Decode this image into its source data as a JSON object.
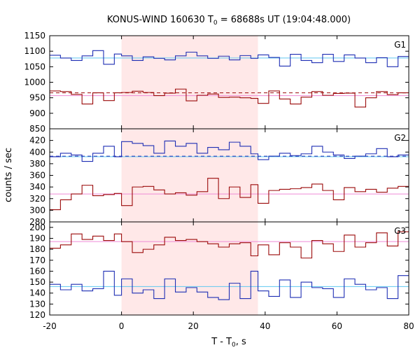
{
  "chart_data": {
    "type": "line",
    "title": "KONUS-WIND 160630 T",
    "title_sub": "0",
    "title_rest": " = 68688s UT (19:04:48.000)",
    "xlabel": "T - T",
    "xlabel_sub": "0",
    "xlabel_rest": ", s",
    "ylabel": "counts / sec",
    "x_range": [
      -20,
      80
    ],
    "x_ticks": [
      -20,
      0,
      20,
      40,
      60,
      80
    ],
    "highlight_interval": [
      0,
      38
    ],
    "highlight_color": "#ffe8e8",
    "colors": {
      "blue": "#1f2fb4",
      "red": "#9b0a0a",
      "cyan": "#5fc8f0",
      "pink": "#ef8ad6"
    },
    "bin_edges": [
      -20,
      -17,
      -14,
      -11,
      -8,
      -5,
      -2,
      0,
      3,
      6,
      9,
      12,
      15,
      18,
      21,
      24,
      27,
      30,
      33,
      36,
      38,
      41,
      44,
      47,
      50,
      53,
      56,
      59,
      62,
      65,
      68,
      71,
      74,
      77,
      80
    ],
    "panels": [
      {
        "label": "G1",
        "y_range": [
          850,
          1150
        ],
        "y_ticks": [
          850,
          900,
          950,
          1000,
          1050,
          1100,
          1150
        ],
        "series": [
          {
            "color": "blue",
            "values": [
              1087,
              1078,
              1070,
              1085,
              1102,
              1058,
              1091,
              1085,
              1070,
              1082,
              1077,
              1072,
              1085,
              1097,
              1085,
              1077,
              1084,
              1072,
              1086,
              1077,
              1088,
              1080,
              1052,
              1090,
              1070,
              1063,
              1090,
              1067,
              1088,
              1078,
              1063,
              1079,
              1050,
              1083
            ]
          },
          {
            "color": "red",
            "values": [
              972,
              970,
              961,
              930,
              966,
              941,
              966,
              967,
              971,
              967,
              957,
              965,
              978,
              940,
              958,
              962,
              951,
              952,
              950,
              948,
              932,
              972,
              946,
              930,
              952,
              970,
              958,
              964,
              965,
              920,
              950,
              970,
              960,
              966
            ]
          }
        ],
        "refs": [
          {
            "value": 1078,
            "color": "cyan",
            "style": "solid"
          },
          {
            "value": 966,
            "color": "red",
            "style": "dashed"
          },
          {
            "value": 957,
            "color": "pink",
            "style": "solid"
          }
        ]
      },
      {
        "label": "G2",
        "y_range": [
          280,
          440
        ],
        "y_ticks": [
          280,
          300,
          320,
          340,
          360,
          380,
          400,
          420
        ],
        "series": [
          {
            "color": "blue",
            "values": [
              392,
              398,
              395,
              384,
              398,
              410,
              392,
              418,
              415,
              411,
              398,
              419,
              410,
              415,
              398,
              408,
              404,
              417,
              410,
              397,
              387,
              393,
              398,
              394,
              397,
              410,
              400,
              395,
              389,
              393,
              397,
              406,
              392,
              395
            ]
          },
          {
            "color": "red",
            "values": [
              301,
              318,
              328,
              343,
              325,
              327,
              329,
              308,
              340,
              341,
              335,
              328,
              330,
              326,
              332,
              355,
              320,
              340,
              322,
              344,
              312,
              334,
              336,
              337,
              339,
              345,
              334,
              318,
              339,
              332,
              336,
              331,
              338,
              341
            ]
          }
        ],
        "refs": [
          {
            "value": 392,
            "color": "cyan",
            "style": "solid"
          },
          {
            "value": 393,
            "color": "blue",
            "style": "dashed"
          },
          {
            "value": 328,
            "color": "pink",
            "style": "solid"
          }
        ]
      },
      {
        "label": "G3",
        "y_range": [
          120,
          205
        ],
        "y_ticks": [
          120,
          130,
          140,
          150,
          160,
          170,
          180,
          190,
          200
        ],
        "series": [
          {
            "color": "blue",
            "values": [
              148,
              143,
              148,
              142,
              144,
              160,
              138,
              153,
              140,
              143,
              135,
              153,
              141,
              145,
              141,
              136,
              134,
              149,
              135,
              160,
              142,
              137,
              152,
              136,
              150,
              145,
              144,
              136,
              153,
              148,
              143,
              145,
              135,
              156
            ]
          },
          {
            "color": "red",
            "values": [
              181,
              184,
              194,
              189,
              192,
              188,
              194,
              187,
              177,
              180,
              184,
              191,
              188,
              189,
              187,
              185,
              182,
              185,
              186,
              174,
              184,
              175,
              186,
              182,
              172,
              188,
              185,
              178,
              193,
              182,
              186,
              195,
              183,
              196
            ]
          }
        ],
        "refs": [
          {
            "value": 146,
            "color": "cyan",
            "style": "solid"
          },
          {
            "value": 187,
            "color": "pink",
            "style": "solid"
          }
        ]
      }
    ]
  }
}
